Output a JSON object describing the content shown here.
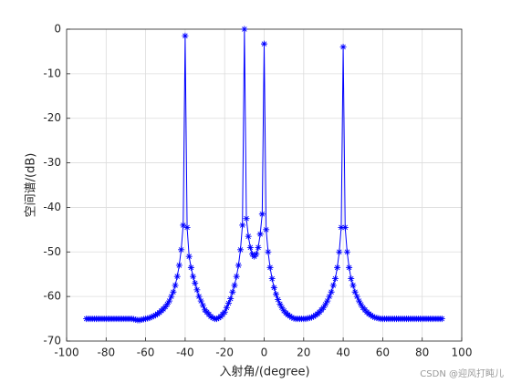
{
  "chart_data": {
    "type": "line",
    "x_label": "入射角/(degree)",
    "y_label": "空间谱/(dB)",
    "watermark": "CSDN @迎风打盹儿",
    "x": [
      -90,
      -89,
      -88,
      -87,
      -86,
      -85,
      -84,
      -83,
      -82,
      -81,
      -80,
      -79,
      -78,
      -77,
      -76,
      -75,
      -74,
      -73,
      -72,
      -71,
      -70,
      -69,
      -68,
      -67,
      -66,
      -65,
      -64,
      -63,
      -62,
      -61,
      -60,
      -59,
      -58,
      -57,
      -56,
      -55,
      -54,
      -53,
      -52,
      -51,
      -50,
      -49,
      -48,
      -47,
      -46,
      -45,
      -44,
      -43,
      -42,
      -41,
      -40,
      -39,
      -38,
      -37,
      -36,
      -35,
      -34,
      -33,
      -32,
      -31,
      -30,
      -29,
      -28,
      -27,
      -26,
      -25,
      -24,
      -23,
      -22,
      -21,
      -20,
      -19,
      -18,
      -17,
      -16,
      -15,
      -14,
      -13,
      -12,
      -11,
      -10,
      -9,
      -8,
      -7,
      -6,
      -5,
      -4,
      -3,
      -2,
      -1,
      0,
      1,
      2,
      3,
      4,
      5,
      6,
      7,
      8,
      9,
      10,
      11,
      12,
      13,
      14,
      15,
      16,
      17,
      18,
      19,
      20,
      21,
      22,
      23,
      24,
      25,
      26,
      27,
      28,
      29,
      30,
      31,
      32,
      33,
      34,
      35,
      36,
      37,
      38,
      39,
      40,
      41,
      42,
      43,
      44,
      45,
      46,
      47,
      48,
      49,
      50,
      51,
      52,
      53,
      54,
      55,
      56,
      57,
      58,
      59,
      60,
      61,
      62,
      63,
      64,
      65,
      66,
      67,
      68,
      69,
      70,
      71,
      72,
      73,
      74,
      75,
      76,
      77,
      78,
      79,
      80,
      81,
      82,
      83,
      84,
      85,
      86,
      87,
      88,
      89,
      90
    ],
    "series": [
      {
        "name": "spectrum",
        "color": "#0000ff",
        "values": [
          -65,
          -65,
          -65,
          -65,
          -65,
          -65,
          -65,
          -65,
          -65,
          -65,
          -65,
          -65,
          -65,
          -65,
          -65,
          -65,
          -65,
          -65,
          -65,
          -65,
          -65,
          -65,
          -65,
          -65,
          -65.1,
          -65.2,
          -65.3,
          -65.3,
          -65.2,
          -65.1,
          -65,
          -64.9,
          -64.8,
          -64.6,
          -64.4,
          -64.2,
          -63.9,
          -63.6,
          -63.2,
          -62.8,
          -62.3,
          -61.7,
          -61,
          -60,
          -59,
          -57.5,
          -55.5,
          -53,
          -49.5,
          -44,
          -1.5,
          -44.5,
          -51,
          -53.5,
          -55.5,
          -57,
          -58.5,
          -60,
          -61,
          -62,
          -63,
          -63.5,
          -64,
          -64.5,
          -64.8,
          -65,
          -65,
          -64.8,
          -64.5,
          -64,
          -63.5,
          -62.5,
          -61.5,
          -60.5,
          -59,
          -57.5,
          -55.5,
          -53,
          -49.5,
          -44,
          0,
          -42.5,
          -46.5,
          -49,
          -50.5,
          -51,
          -50.5,
          -49,
          -46,
          -41.5,
          -3.3,
          -45,
          -50,
          -53.5,
          -56,
          -58,
          -59.5,
          -60.7,
          -61.7,
          -62.5,
          -63.2,
          -63.7,
          -64.1,
          -64.4,
          -64.7,
          -64.9,
          -65,
          -65,
          -65,
          -65,
          -65,
          -65,
          -64.9,
          -64.8,
          -64.7,
          -64.5,
          -64.2,
          -63.9,
          -63.5,
          -63,
          -62.5,
          -61.8,
          -61,
          -60,
          -59,
          -57.5,
          -56,
          -53.5,
          -50,
          -44.5,
          -4,
          -44.5,
          -50,
          -53.5,
          -56,
          -57.5,
          -59,
          -60,
          -61,
          -61.8,
          -62.5,
          -63,
          -63.5,
          -63.9,
          -64.2,
          -64.5,
          -64.7,
          -64.8,
          -64.9,
          -65,
          -65,
          -65,
          -65,
          -65,
          -65,
          -65,
          -65,
          -65,
          -65,
          -65,
          -65,
          -65,
          -65,
          -65,
          -65,
          -65,
          -65,
          -65,
          -65,
          -65,
          -65,
          -65,
          -65,
          -65,
          -65,
          -65,
          -65,
          -65,
          -65,
          -65,
          -65
        ]
      }
    ],
    "xlim": [
      -100,
      100
    ],
    "xticks": [
      -100,
      -80,
      -60,
      -40,
      -20,
      0,
      20,
      40,
      60,
      80,
      100
    ],
    "ylim": [
      -70,
      0
    ],
    "yticks": [
      -70,
      -60,
      -50,
      -40,
      -30,
      -20,
      -10,
      0
    ],
    "grid": true,
    "marker": "asterisk"
  }
}
